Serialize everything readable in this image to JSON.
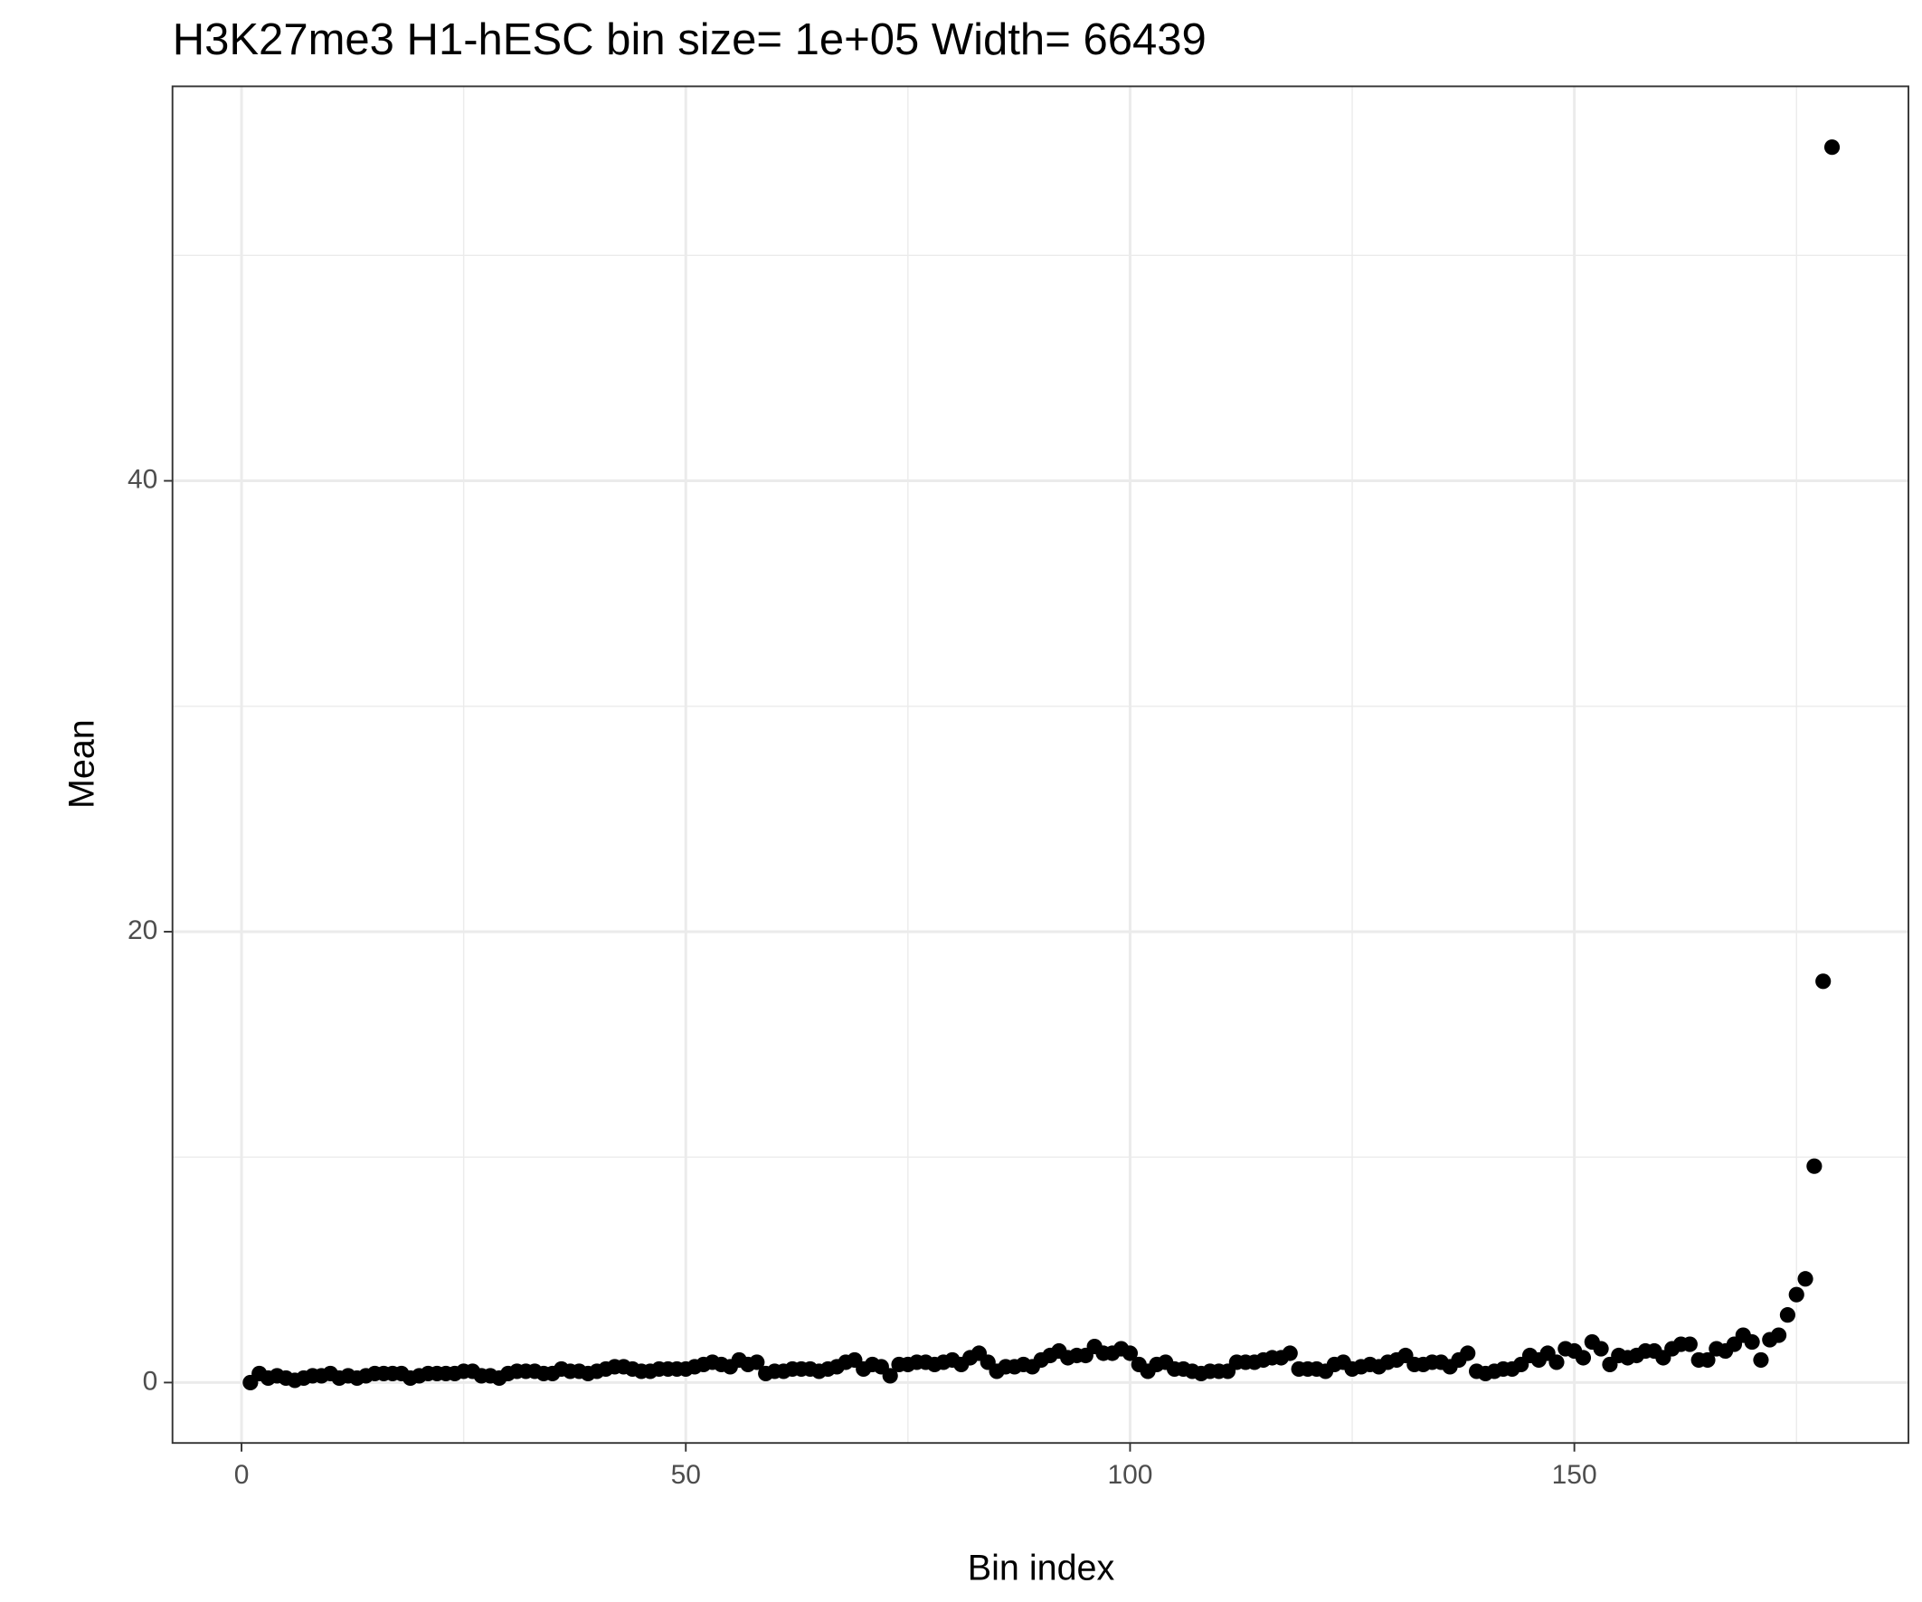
{
  "chart_data": {
    "type": "scatter",
    "title": "H3K27me3 H1-hESC  bin size=  1e+05  Width=  66439",
    "x_label": "Bin index",
    "y_label": "Mean",
    "color": "#000000",
    "x": [
      1,
      2,
      3,
      4,
      5,
      6,
      7,
      8,
      9,
      10,
      11,
      12,
      13,
      14,
      15,
      16,
      17,
      18,
      19,
      20,
      21,
      22,
      23,
      24,
      25,
      26,
      27,
      28,
      29,
      30,
      31,
      32,
      33,
      34,
      35,
      36,
      37,
      38,
      39,
      40,
      41,
      42,
      43,
      44,
      45,
      46,
      47,
      48,
      49,
      50,
      51,
      52,
      53,
      54,
      55,
      56,
      57,
      58,
      59,
      60,
      61,
      62,
      63,
      64,
      65,
      66,
      67,
      68,
      69,
      70,
      71,
      72,
      73,
      74,
      75,
      76,
      77,
      78,
      79,
      80,
      81,
      82,
      83,
      84,
      85,
      86,
      87,
      88,
      89,
      90,
      91,
      92,
      93,
      94,
      95,
      96,
      97,
      98,
      99,
      100,
      101,
      102,
      103,
      104,
      105,
      106,
      107,
      108,
      109,
      110,
      111,
      112,
      113,
      114,
      115,
      116,
      117,
      118,
      119,
      120,
      121,
      122,
      123,
      124,
      125,
      126,
      127,
      128,
      129,
      130,
      131,
      132,
      133,
      134,
      135,
      136,
      137,
      138,
      139,
      140,
      141,
      142,
      143,
      144,
      145,
      146,
      147,
      148,
      149,
      150,
      151,
      152,
      153,
      154,
      155,
      156,
      157,
      158,
      159,
      160,
      161,
      162,
      163,
      164,
      165,
      166,
      167,
      168,
      169,
      170,
      171,
      172,
      173,
      174,
      175,
      176,
      177,
      178,
      179
    ],
    "values": [
      0.0,
      0.4,
      0.2,
      0.3,
      0.2,
      0.1,
      0.2,
      0.3,
      0.3,
      0.4,
      0.2,
      0.3,
      0.2,
      0.3,
      0.4,
      0.4,
      0.4,
      0.4,
      0.2,
      0.3,
      0.4,
      0.4,
      0.4,
      0.4,
      0.5,
      0.5,
      0.3,
      0.3,
      0.2,
      0.4,
      0.5,
      0.5,
      0.5,
      0.4,
      0.4,
      0.6,
      0.5,
      0.5,
      0.4,
      0.5,
      0.6,
      0.7,
      0.7,
      0.6,
      0.5,
      0.5,
      0.6,
      0.6,
      0.6,
      0.6,
      0.7,
      0.8,
      0.9,
      0.8,
      0.7,
      1.0,
      0.8,
      0.9,
      0.4,
      0.5,
      0.5,
      0.6,
      0.6,
      0.6,
      0.5,
      0.6,
      0.7,
      0.9,
      1.0,
      0.6,
      0.8,
      0.7,
      0.3,
      0.8,
      0.8,
      0.9,
      0.9,
      0.8,
      0.9,
      1.0,
      0.8,
      1.1,
      1.3,
      0.9,
      0.5,
      0.7,
      0.7,
      0.8,
      0.7,
      1.0,
      1.2,
      1.4,
      1.1,
      1.2,
      1.2,
      1.6,
      1.3,
      1.3,
      1.5,
      1.3,
      0.8,
      0.5,
      0.8,
      0.9,
      0.6,
      0.6,
      0.5,
      0.4,
      0.5,
      0.5,
      0.5,
      0.9,
      0.9,
      0.9,
      1.0,
      1.1,
      1.1,
      1.3,
      0.6,
      0.6,
      0.6,
      0.5,
      0.8,
      0.9,
      0.6,
      0.7,
      0.8,
      0.7,
      0.9,
      1.0,
      1.2,
      0.8,
      0.8,
      0.9,
      0.9,
      0.7,
      1.0,
      1.3,
      0.5,
      0.4,
      0.5,
      0.6,
      0.6,
      0.8,
      1.2,
      1.0,
      1.3,
      0.9,
      1.5,
      1.4,
      1.1,
      1.8,
      1.5,
      0.8,
      1.2,
      1.1,
      1.2,
      1.4,
      1.4,
      1.1,
      1.5,
      1.7,
      1.7,
      1.0,
      1.0,
      1.5,
      1.4,
      1.7,
      2.1,
      1.8,
      1.0,
      1.9,
      2.1,
      3.0,
      3.9,
      4.6,
      9.6,
      17.8,
      54.8
    ],
    "xlim": [
      -7.77,
      187.6
    ],
    "ylim": [
      -2.68,
      57.5
    ],
    "xticks": [
      0,
      50,
      100,
      150
    ],
    "yticks": [
      0,
      20,
      40
    ],
    "x_minor_grid": [
      25,
      75,
      125,
      175
    ],
    "y_minor_grid": [
      10,
      30,
      50
    ],
    "grid": true
  }
}
